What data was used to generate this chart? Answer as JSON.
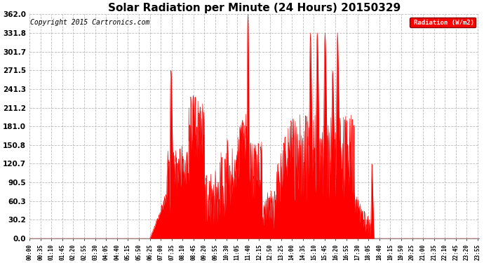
{
  "title": "Solar Radiation per Minute (24 Hours) 20150329",
  "copyright": "Copyright 2015 Cartronics.com",
  "legend_label": "Radiation (W/m2)",
  "yticks": [
    0.0,
    30.2,
    60.3,
    90.5,
    120.7,
    150.8,
    181.0,
    211.2,
    241.3,
    271.5,
    301.7,
    331.8,
    362.0
  ],
  "ymax": 362.0,
  "fill_color": "#FF0000",
  "line_color": "#FF0000",
  "bg_color": "#FFFFFF",
  "grid_color": "#BBBBBB",
  "title_fontsize": 11,
  "copyright_fontsize": 7,
  "xtick_fontsize": 5.5,
  "ytick_fontsize": 7.5
}
